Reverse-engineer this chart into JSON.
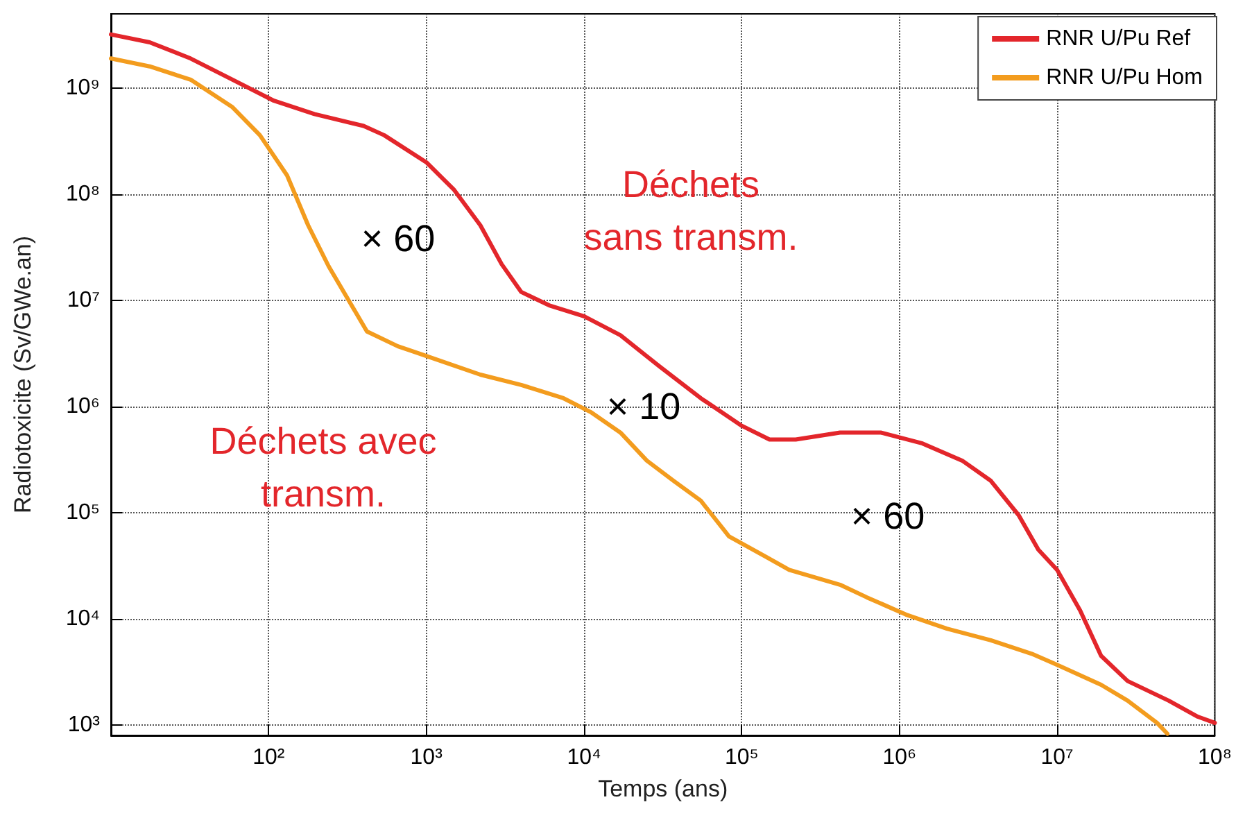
{
  "chart_data": {
    "type": "line",
    "xlabel": "Temps (ans)",
    "ylabel": "Radiotoxicite (Sv/GWe.an)",
    "log": "xy",
    "grid": true,
    "legend": "top right",
    "marker": "none",
    "line_style": "solid",
    "xlim": [
      10,
      100000000
    ],
    "ylim": [
      800,
      5000000000
    ],
    "xticks": [
      {
        "value": 100,
        "label": "10²"
      },
      {
        "value": 1000,
        "label": "10³"
      },
      {
        "value": 10000,
        "label": "10⁴"
      },
      {
        "value": 100000,
        "label": "10⁵"
      },
      {
        "value": 1000000,
        "label": "10⁶"
      },
      {
        "value": 10000000,
        "label": "10⁷"
      },
      {
        "value": 100000000,
        "label": "10⁸"
      }
    ],
    "yticks": [
      {
        "value": 1000,
        "label": "10³"
      },
      {
        "value": 10000,
        "label": "10⁴"
      },
      {
        "value": 100000,
        "label": "10⁵"
      },
      {
        "value": 1000000,
        "label": "10⁶"
      },
      {
        "value": 10000000,
        "label": "10⁷"
      },
      {
        "value": 100000000,
        "label": "10⁸"
      },
      {
        "value": 1000000000,
        "label": "10⁹"
      }
    ],
    "series": [
      {
        "name": "RNR U/Pu Ref",
        "color": "#e3262b",
        "x": [
          10,
          17.6,
          32,
          59,
          108,
          195,
          400,
          540,
          1000,
          1500,
          2200,
          3000,
          4000,
          6000,
          10000,
          17000,
          30000,
          55000,
          100000,
          150000,
          220000,
          420000,
          760000,
          1400000,
          2500000,
          3800000,
          5700000,
          7600000,
          10000000,
          14000000,
          19000000,
          28000000,
          51000000,
          78000000,
          100000000
        ],
        "values": [
          3200000000,
          2700000000,
          1900000000,
          1200000000,
          760000000,
          570000000,
          440000000,
          360000000,
          200000000,
          110000000,
          51000000,
          22000000,
          12000000,
          9000000,
          7100000,
          4700000,
          2400000,
          1200000,
          660000,
          490000,
          490000,
          570000,
          570000,
          450000,
          310000,
          200000,
          95000,
          45000,
          29000,
          12000,
          4500,
          2600,
          1700,
          1200,
          1050
        ]
      },
      {
        "name": "RNR U/Pu Hom",
        "color": "#f39c1e",
        "x": [
          10,
          17.6,
          32,
          59,
          88,
          131,
          178,
          240,
          310,
          420,
          660,
          1000,
          2200,
          4000,
          7400,
          11000,
          17000,
          25000,
          37000,
          55000,
          83000,
          140000,
          200000,
          420000,
          620000,
          1100000,
          2000000,
          3800000,
          6900000,
          10000000,
          19000000,
          28000000,
          43000000,
          50000000
        ],
        "values": [
          1900000000,
          1600000000,
          1200000000,
          660000000,
          360000000,
          150000000,
          51000000,
          21000000,
          11000000,
          5100000,
          3700000,
          3000000,
          2000000,
          1600000,
          1200000,
          890000,
          570000,
          310000,
          200000,
          130000,
          60000,
          39000,
          29000,
          21000,
          16000,
          11000,
          8100,
          6300,
          4700,
          3700,
          2400,
          1700,
          1050,
          830
        ]
      }
    ],
    "annotations": [
      "× 60",
      "× 10",
      "× 60",
      "Déchets sans transm.",
      "Déchets avec transm."
    ]
  }
}
